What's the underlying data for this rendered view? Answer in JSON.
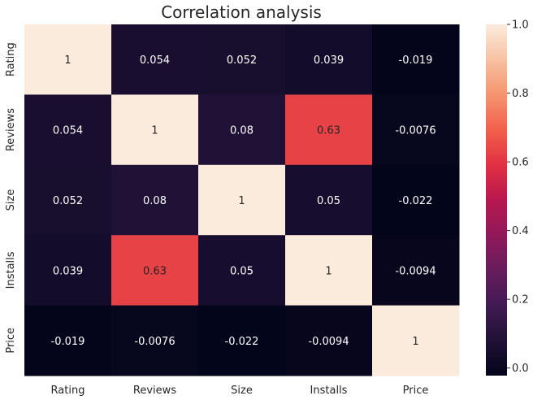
{
  "chart_data": {
    "type": "heatmap",
    "title": "Correlation analysis",
    "x_categories": [
      "Rating",
      "Reviews",
      "Size",
      "Installs",
      "Price"
    ],
    "y_categories": [
      "Rating",
      "Reviews",
      "Size",
      "Installs",
      "Price"
    ],
    "values": [
      [
        1,
        0.054,
        0.052,
        0.039,
        -0.019
      ],
      [
        0.054,
        1,
        0.08,
        0.63,
        -0.0076
      ],
      [
        0.052,
        0.08,
        1,
        0.05,
        -0.022
      ],
      [
        0.039,
        0.63,
        0.05,
        1,
        -0.0094
      ],
      [
        -0.019,
        -0.0076,
        -0.022,
        -0.0094,
        1
      ]
    ],
    "annotations": [
      [
        "1",
        "0.054",
        "0.052",
        "0.039",
        "-0.019"
      ],
      [
        "0.054",
        "1",
        "0.08",
        "0.63",
        "-0.0076"
      ],
      [
        "0.052",
        "0.08",
        "1",
        "0.05",
        "-0.022"
      ],
      [
        "0.039",
        "0.63",
        "0.05",
        "1",
        "-0.0094"
      ],
      [
        "-0.019",
        "-0.0076",
        "-0.022",
        "-0.0094",
        "1"
      ]
    ],
    "colorbar": {
      "range": [
        -0.022,
        1
      ],
      "ticks": [
        0.0,
        0.2,
        0.4,
        0.6,
        0.8,
        1.0
      ],
      "tick_labels": [
        "0.0",
        "0.2",
        "0.4",
        "0.6",
        "0.8",
        "1.0"
      ],
      "colormap": "rocket"
    }
  }
}
